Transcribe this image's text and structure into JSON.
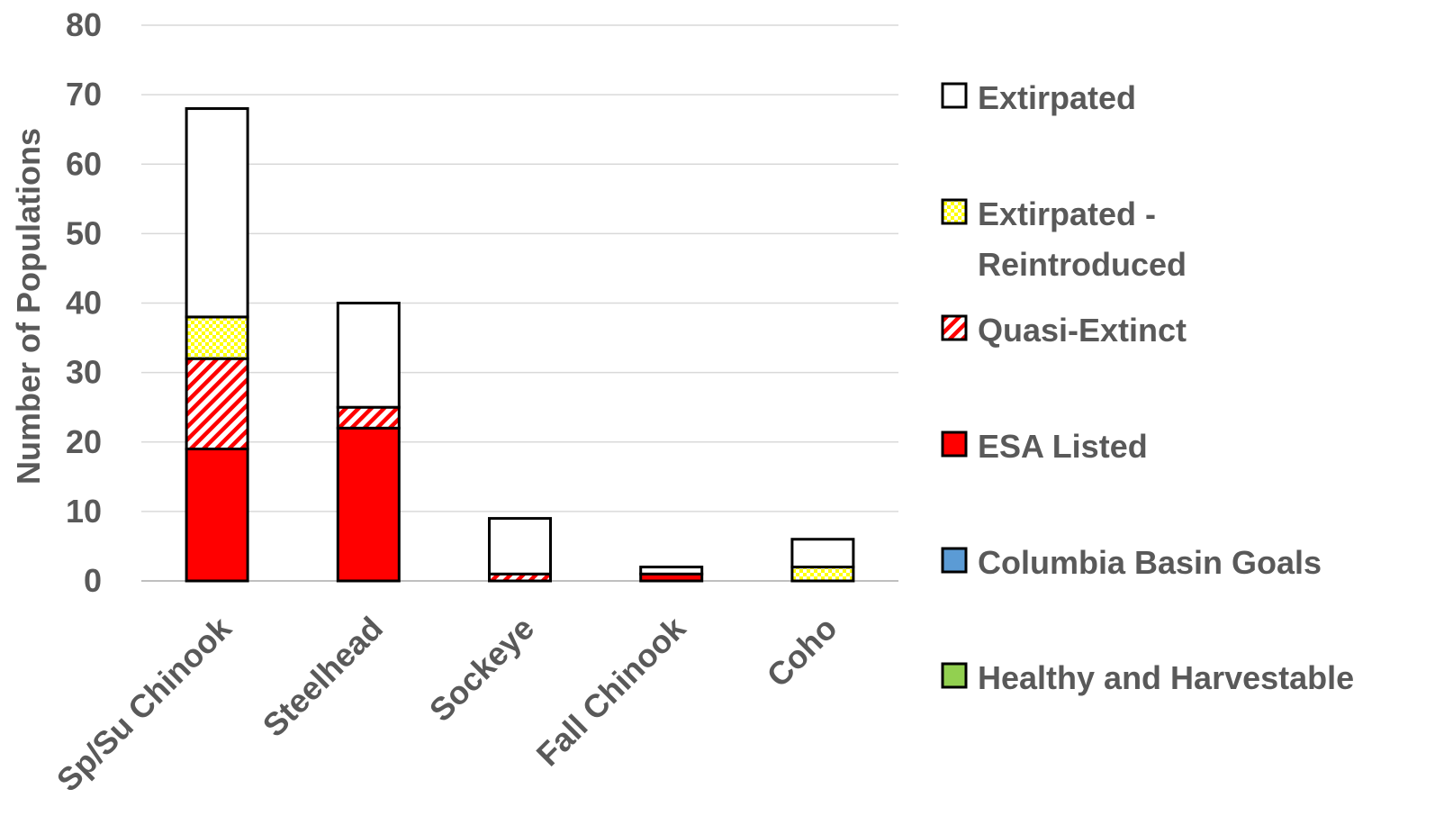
{
  "chart_data": {
    "type": "bar",
    "stacked": true,
    "title": "",
    "xlabel": "",
    "ylabel": "Number of Populations",
    "ylim": [
      0,
      80
    ],
    "yticks": [
      0,
      10,
      20,
      30,
      40,
      50,
      60,
      70,
      80
    ],
    "grid": true,
    "legend_position": "right",
    "categories": [
      "Sp/Su Chinook",
      "Steelhead",
      "Sockeye",
      "Fall Chinook",
      "Coho"
    ],
    "series": [
      {
        "name": "Healthy and Harvestable",
        "values": [
          0,
          0,
          0,
          0,
          0
        ],
        "color": "#92d050",
        "pattern": "solid"
      },
      {
        "name": "Columbia Basin Goals",
        "values": [
          0,
          0,
          0,
          0,
          0
        ],
        "color": "#5b9bd5",
        "pattern": "solid"
      },
      {
        "name": "ESA Listed",
        "values": [
          19,
          22,
          0,
          1,
          0
        ],
        "color": "#ff0000",
        "pattern": "solid"
      },
      {
        "name": "Quasi-Extinct",
        "values": [
          13,
          3,
          1,
          0,
          0
        ],
        "color": "#ff0000",
        "pattern": "diagonal-hatch"
      },
      {
        "name": "Extirpated - Reintroduced",
        "values": [
          6,
          0,
          0,
          0,
          2
        ],
        "color": "#ffff00",
        "pattern": "checker"
      },
      {
        "name": "Extirpated",
        "values": [
          30,
          15,
          8,
          1,
          4
        ],
        "color": "#ffffff",
        "pattern": "solid"
      }
    ],
    "legend": {
      "order": [
        "Extirpated",
        "Extirpated - Reintroduced",
        "Quasi-Extinct",
        "ESA Listed",
        "Columbia Basin Goals",
        "Healthy and Harvestable"
      ],
      "wrapped_lines": {
        "Extirpated - Reintroduced": [
          "Extirpated -",
          "Reintroduced"
        ]
      }
    }
  }
}
